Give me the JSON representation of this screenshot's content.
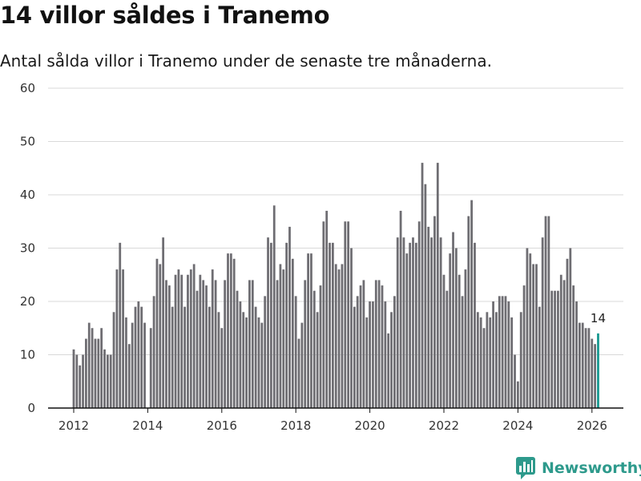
{
  "colors": {
    "bar": "#6e6d72",
    "highlight": "#16978f",
    "grid": "#d9d9d9",
    "axis": "#111111",
    "brand": "#2e9a8c"
  },
  "brand": {
    "name": "Newsworthy",
    "icon": "newsworthy-logo-icon"
  },
  "chart_data": {
    "type": "bar",
    "title": "14 villor såldes i Tranemo",
    "subtitle": "Antal sålda villor i Tranemo under de senaste tre månaderna.",
    "xlabel": "",
    "ylabel": "",
    "ylim": [
      0,
      60
    ],
    "yticks": [
      0,
      10,
      20,
      30,
      40,
      50,
      60
    ],
    "xticks": [
      2012,
      2014,
      2016,
      2018,
      2020,
      2022,
      2024,
      2026
    ],
    "x_start": 2012.0,
    "x_step": 0.08333,
    "values": [
      11,
      10,
      8,
      10,
      13,
      16,
      15,
      13,
      13,
      15,
      11,
      10,
      10,
      18,
      26,
      31,
      26,
      17,
      12,
      16,
      19,
      20,
      19,
      16,
      0,
      15,
      21,
      28,
      27,
      32,
      24,
      23,
      19,
      25,
      26,
      25,
      19,
      25,
      26,
      27,
      22,
      25,
      24,
      23,
      19,
      26,
      24,
      18,
      15,
      24,
      29,
      29,
      28,
      22,
      20,
      18,
      17,
      24,
      24,
      19,
      17,
      16,
      21,
      32,
      31,
      38,
      24,
      27,
      26,
      31,
      34,
      28,
      21,
      13,
      16,
      24,
      29,
      29,
      22,
      18,
      23,
      35,
      37,
      31,
      31,
      27,
      26,
      27,
      35,
      35,
      30,
      19,
      21,
      23,
      24,
      17,
      20,
      20,
      24,
      24,
      23,
      20,
      14,
      18,
      21,
      32,
      37,
      32,
      29,
      31,
      32,
      31,
      35,
      46,
      42,
      34,
      32,
      36,
      46,
      32,
      25,
      22,
      29,
      33,
      30,
      25,
      21,
      26,
      36,
      39,
      31,
      18,
      17,
      15,
      18,
      17,
      20,
      18,
      21,
      21,
      21,
      20,
      17,
      10,
      5,
      18,
      23,
      30,
      29,
      27,
      27,
      19,
      32,
      36,
      36,
      22,
      22,
      22,
      25,
      24,
      28,
      30,
      23,
      20,
      16,
      16,
      15,
      15,
      13,
      12,
      14
    ],
    "highlight_index": 170,
    "highlight_label": "14"
  }
}
